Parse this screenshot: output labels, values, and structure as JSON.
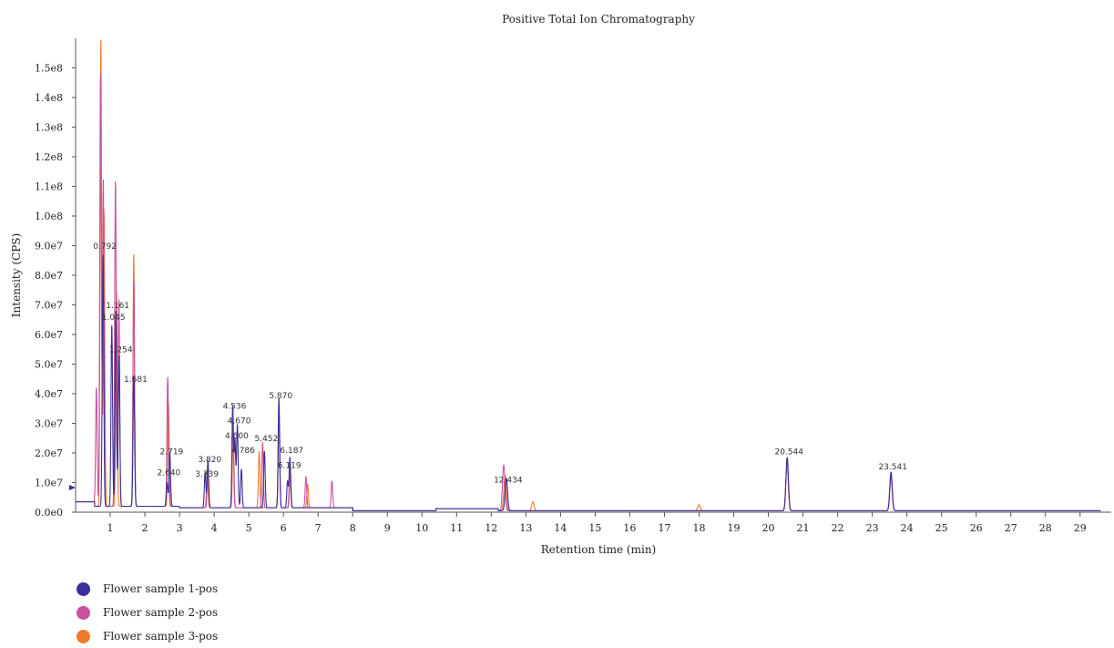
{
  "chart_data": {
    "type": "line",
    "title": "Positive Total Ion Chromatography",
    "xlabel": "Retention time (min)",
    "ylabel": "Intensity (CPS)",
    "xlim": [
      0,
      29.9
    ],
    "ylim": [
      0,
      160000000.0
    ],
    "x_ticks": [
      "1",
      "2",
      "3",
      "4",
      "5",
      "6",
      "7",
      "8",
      "9",
      "10",
      "11",
      "12",
      "13",
      "14",
      "15",
      "16",
      "17",
      "18",
      "19",
      "20",
      "21",
      "22",
      "23",
      "24",
      "25",
      "26",
      "27",
      "28",
      "29"
    ],
    "y_ticks": [
      "0.0e0",
      "1.0e7",
      "2.0e7",
      "3.0e7",
      "4.0e7",
      "5.0e7",
      "6.0e7",
      "7.0e7",
      "8.0e7",
      "9.0e7",
      "1.0e8",
      "1.1e8",
      "1.2e8",
      "1.3e8",
      "1.4e8",
      "1.5e8"
    ],
    "legend": "bottom-left",
    "series": [
      {
        "name": "Flower sample 1-pos",
        "color": "#3a2f9a",
        "peaks": [
          [
            0.792,
            85000000.0
          ],
          [
            1.045,
            61000000.0
          ],
          [
            1.161,
            66000000.0
          ],
          [
            1.254,
            51000000.0
          ],
          [
            1.681,
            44000000.0
          ],
          [
            2.64,
            8000000.0
          ],
          [
            2.719,
            18000000.0
          ],
          [
            3.739,
            12000000.0
          ],
          [
            3.82,
            16000000.0
          ],
          [
            4.536,
            34000000.0
          ],
          [
            4.6,
            23000000.0
          ],
          [
            4.67,
            28000000.0
          ],
          [
            4.786,
            13000000.0
          ],
          [
            5.452,
            19000000.0
          ],
          [
            5.87,
            37000000.0
          ],
          [
            6.119,
            9000000.0
          ],
          [
            6.187,
            17000000.0
          ],
          [
            12.434,
            11000000.0
          ],
          [
            20.544,
            18000000.0
          ],
          [
            23.541,
            13000000.0
          ]
        ]
      },
      {
        "name": "Flower sample 2-pos",
        "color": "#c8509f",
        "peaks": [
          [
            0.6,
            40000000.0
          ],
          [
            0.72,
            146000000.0
          ],
          [
            0.8,
            110000000.0
          ],
          [
            1.15,
            110000000.0
          ],
          [
            1.25,
            70000000.0
          ],
          [
            1.68,
            76000000.0
          ],
          [
            2.66,
            43500000.0
          ],
          [
            3.82,
            14000000.0
          ],
          [
            4.54,
            30000000.0
          ],
          [
            5.4,
            22000000.0
          ],
          [
            5.87,
            34000000.0
          ],
          [
            6.19,
            15000000.0
          ],
          [
            6.65,
            10500000.0
          ],
          [
            7.4,
            9000000.0
          ],
          [
            12.36,
            15500000.0
          ],
          [
            20.54,
            17000000.0
          ],
          [
            23.54,
            12000000.0
          ]
        ]
      },
      {
        "name": "Flower sample 3-pos",
        "color": "#f07a2c",
        "peaks": [
          [
            0.73,
            158000000.0
          ],
          [
            0.82,
            100000000.0
          ],
          [
            1.18,
            73000000.0
          ],
          [
            1.68,
            85000000.0
          ],
          [
            2.68,
            35000000.0
          ],
          [
            3.8,
            12000000.0
          ],
          [
            4.55,
            26000000.0
          ],
          [
            5.3,
            19000000.0
          ],
          [
            5.87,
            29000000.0
          ],
          [
            6.2,
            12000000.0
          ],
          [
            6.7,
            8000000.0
          ],
          [
            12.4,
            12000000.0
          ],
          [
            13.2,
            3000000.0
          ],
          [
            18.0,
            2000000.0
          ],
          [
            20.54,
            16000000.0
          ],
          [
            23.54,
            11000000.0
          ]
        ]
      }
    ],
    "annotations": [
      {
        "label": "0.792",
        "x": 0.792,
        "y": 89000000.0
      },
      {
        "label": "1.161",
        "x": 1.161,
        "y": 69000000.0
      },
      {
        "label": "1.045",
        "x": 1.045,
        "y": 65000000.0
      },
      {
        "label": "1.254",
        "x": 1.254,
        "y": 54000000.0
      },
      {
        "label": "1.681",
        "x": 1.681,
        "y": 44000000.0
      },
      {
        "label": "2.719",
        "x": 2.719,
        "y": 19500000.0
      },
      {
        "label": "2.640",
        "x": 2.64,
        "y": 12500000.0
      },
      {
        "label": "3.820",
        "x": 3.82,
        "y": 17000000.0
      },
      {
        "label": "3.739",
        "x": 3.739,
        "y": 12000000.0
      },
      {
        "label": "4.536",
        "x": 4.536,
        "y": 35000000.0
      },
      {
        "label": "4.670",
        "x": 4.67,
        "y": 30000000.0
      },
      {
        "label": "4.600",
        "x": 4.6,
        "y": 25000000.0
      },
      {
        "label": "4.786",
        "x": 4.786,
        "y": 20000000.0
      },
      {
        "label": "5.452",
        "x": 5.452,
        "y": 24000000.0
      },
      {
        "label": "5.870",
        "x": 5.87,
        "y": 38500000.0
      },
      {
        "label": "6.187",
        "x": 6.187,
        "y": 20000000.0
      },
      {
        "label": "6.119",
        "x": 6.119,
        "y": 15000000.0
      },
      {
        "label": "12.434",
        "x": 12.434,
        "y": 10000000.0
      },
      {
        "label": "20.544",
        "x": 20.544,
        "y": 19500000.0
      },
      {
        "label": "23.541",
        "x": 23.541,
        "y": 14500000.0
      }
    ]
  }
}
